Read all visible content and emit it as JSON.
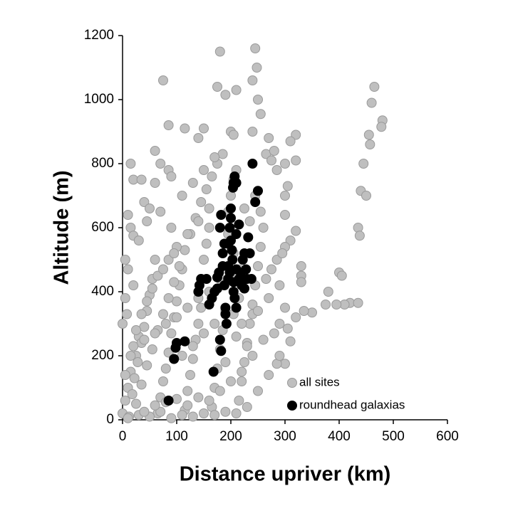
{
  "chart_data": {
    "type": "scatter",
    "x_label": "Distance upriver (km)",
    "y_label": "Altitude (m)",
    "xlim": [
      0,
      600
    ],
    "xticks": [
      0,
      100,
      200,
      300,
      400,
      500,
      600
    ],
    "ylim": [
      0,
      1200
    ],
    "yticks": [
      0,
      200,
      400,
      600,
      800,
      1000,
      1200
    ],
    "grid": false,
    "legend": "lower right",
    "series": [
      {
        "name": "all sites",
        "color": "#bfbfbf",
        "x": [
          75,
          180,
          245,
          175,
          210,
          190,
          240,
          248,
          250,
          255,
          240,
          200,
          85,
          150,
          205,
          320,
          310,
          270,
          320,
          300,
          265,
          140,
          115,
          465,
          460,
          480,
          478,
          455,
          457,
          445,
          440,
          450,
          435,
          438,
          400,
          405,
          380,
          420,
          435,
          410,
          395,
          375,
          350,
          335,
          320,
          300,
          290,
          305,
          310,
          300,
          285,
          330,
          330,
          330,
          320,
          310,
          300,
          300,
          300,
          305,
          285,
          280,
          275,
          15,
          20,
          35,
          60,
          70,
          85,
          90,
          60,
          10,
          15,
          20,
          40,
          50,
          45,
          30,
          5,
          10,
          5,
          20,
          0,
          5,
          10,
          15,
          25,
          30,
          0,
          8,
          12,
          18,
          22,
          28,
          35,
          40,
          45,
          50,
          55,
          60,
          65,
          70,
          75,
          80,
          85,
          90,
          95,
          100,
          105,
          110,
          115,
          120,
          125,
          130,
          135,
          140,
          145,
          150,
          155,
          160,
          165,
          170,
          175,
          180,
          185,
          190,
          195,
          200,
          205,
          210,
          215,
          220,
          225,
          230,
          235,
          240,
          245,
          250,
          255,
          260,
          25,
          35,
          45,
          55,
          65,
          75,
          85,
          95,
          105,
          115,
          125,
          135,
          145,
          155,
          165,
          175,
          185,
          195,
          205,
          215,
          10,
          30,
          50,
          70,
          90,
          110,
          130,
          150,
          170,
          190,
          210,
          230,
          250,
          270,
          290,
          40,
          60,
          80,
          100,
          120,
          140,
          160,
          180,
          200,
          220,
          240,
          260,
          280,
          20,
          40,
          60,
          80,
          100,
          120,
          140,
          160,
          180,
          200,
          220,
          240,
          100,
          120,
          140,
          160,
          110,
          130,
          150,
          170,
          90,
          70,
          5,
          15,
          25,
          35,
          45,
          55,
          65,
          75,
          85,
          95,
          110,
          130,
          150,
          170,
          190,
          210,
          230,
          250,
          270,
          290,
          265,
          275,
          285,
          295,
          255,
          245,
          235,
          225,
          215,
          205
        ],
        "y": [
          1060,
          1150,
          1160,
          1040,
          1030,
          1015,
          1060,
          1100,
          1000,
          955,
          900,
          900,
          920,
          910,
          890,
          890,
          870,
          880,
          810,
          800,
          830,
          880,
          910,
          1040,
          990,
          935,
          915,
          890,
          860,
          800,
          715,
          700,
          600,
          575,
          460,
          450,
          400,
          365,
          365,
          360,
          360,
          360,
          335,
          340,
          320,
          350,
          300,
          285,
          245,
          175,
          175,
          480,
          450,
          430,
          590,
          560,
          540,
          640,
          700,
          730,
          780,
          840,
          810,
          800,
          750,
          750,
          840,
          800,
          780,
          760,
          740,
          640,
          600,
          575,
          680,
          660,
          620,
          560,
          500,
          470,
          380,
          420,
          20,
          60,
          100,
          150,
          200,
          260,
          300,
          330,
          10,
          80,
          130,
          180,
          240,
          290,
          340,
          390,
          440,
          500,
          20,
          70,
          120,
          160,
          210,
          270,
          320,
          370,
          420,
          470,
          30,
          90,
          140,
          190,
          250,
          300,
          350,
          500,
          550,
          600,
          40,
          100,
          160,
          220,
          280,
          340,
          650,
          700,
          750,
          780,
          60,
          120,
          180,
          240,
          300,
          360,
          420,
          480,
          540,
          600,
          50,
          110,
          170,
          220,
          280,
          330,
          380,
          430,
          480,
          530,
          580,
          630,
          680,
          720,
          760,
          800,
          830,
          580,
          520,
          470,
          5,
          15,
          10,
          25,
          5,
          15,
          10,
          20,
          15,
          25,
          20,
          40,
          90,
          140,
          200,
          25,
          45,
          55,
          65,
          45,
          70,
          60,
          90,
          120,
          150,
          200,
          250,
          270,
          230,
          250,
          270,
          300,
          320,
          350,
          380,
          400,
          440,
          460,
          300,
          330,
          540,
          580,
          620,
          660,
          700,
          740,
          780,
          820,
          600,
          650,
          140,
          200,
          280,
          330,
          370,
          410,
          450,
          470,
          500,
          520,
          200,
          230,
          270,
          300,
          180,
          260,
          230,
          340,
          380,
          420,
          440,
          470,
          500,
          520,
          650,
          700,
          620,
          660,
          380,
          330
        ]
      },
      {
        "name": "roundhead galaxias",
        "color": "#000000",
        "x": [
          85,
          95,
          98,
          100,
          115,
          140,
          142,
          145,
          155,
          160,
          165,
          170,
          168,
          175,
          175,
          178,
          180,
          182,
          185,
          185,
          188,
          190,
          190,
          192,
          195,
          195,
          198,
          200,
          200,
          200,
          202,
          203,
          205,
          205,
          207,
          210,
          205,
          207,
          204,
          210,
          215,
          218,
          220,
          222,
          225,
          228,
          230,
          232,
          235,
          238,
          240,
          245,
          250,
          180,
          182,
          210,
          215,
          195,
          198,
          188,
          210,
          225
        ],
        "y": [
          60,
          190,
          225,
          240,
          245,
          400,
          420,
          440,
          440,
          360,
          380,
          400,
          150,
          410,
          445,
          460,
          600,
          640,
          520,
          480,
          550,
          350,
          330,
          300,
          440,
          480,
          600,
          660,
          630,
          560,
          530,
          500,
          430,
          400,
          380,
          350,
          740,
          760,
          725,
          740,
          440,
          460,
          420,
          500,
          520,
          470,
          440,
          570,
          520,
          440,
          800,
          680,
          715,
          250,
          215,
          580,
          610,
          550,
          460,
          420,
          470,
          410
        ]
      }
    ]
  }
}
